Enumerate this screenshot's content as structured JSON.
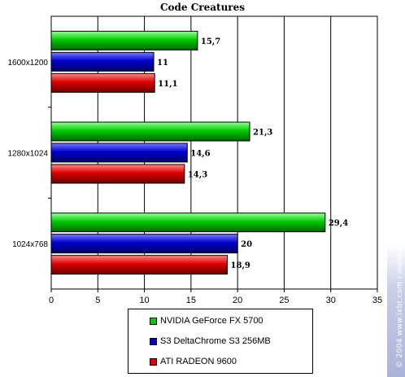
{
  "chart_data": {
    "type": "bar",
    "orientation": "horizontal",
    "title": "Code Creatures",
    "categories": [
      "1600x1200",
      "1280x1024",
      "1024x768"
    ],
    "series": [
      {
        "name": "NVIDIA GeForce FX 5700",
        "color": "#00cc00",
        "values": [
          15.7,
          21.3,
          29.4
        ],
        "labels": [
          "15,7",
          "21,3",
          "29,4"
        ]
      },
      {
        "name": "S3 DeltaChrome S3 256MB",
        "color": "#0000cc",
        "values": [
          11,
          14.6,
          20
        ],
        "labels": [
          "11",
          "14,6",
          "20"
        ]
      },
      {
        "name": "ATI RADEON 9600",
        "color": "#dd0000",
        "values": [
          11.1,
          14.3,
          18.9
        ],
        "labels": [
          "11,1",
          "14,3",
          "18,9"
        ]
      }
    ],
    "xlim": [
      0,
      35
    ],
    "xticks": [
      "0",
      "5",
      "10",
      "15",
      "20",
      "25",
      "30",
      "35"
    ],
    "grid": true,
    "legend_position": "bottom"
  },
  "watermark": "© 2004 www.ixbt.com / www.digit-life.com"
}
